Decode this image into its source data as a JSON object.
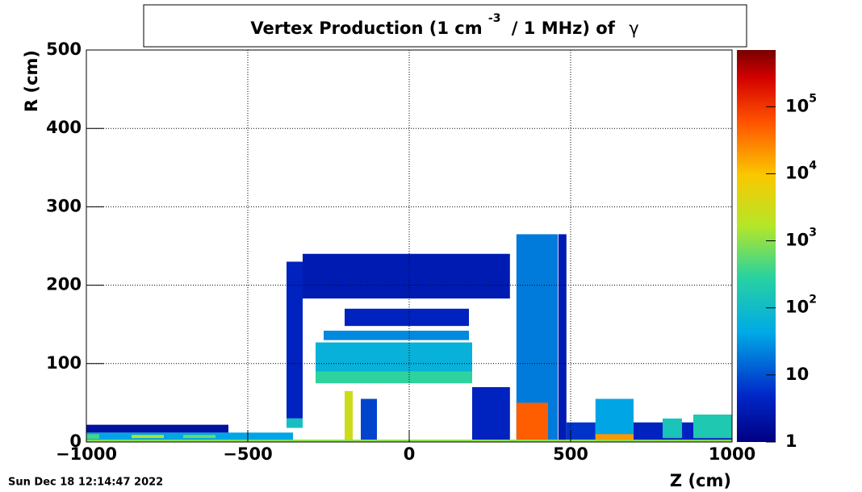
{
  "chart_data": {
    "type": "heatmap",
    "title": "Vertex Production (1 cm",
    "title_superscript": "-3",
    "title_rest": "/ 1 MHz) of",
    "title_particle": "γ",
    "timestamp": "Sun Dec 18 12:14:47 2022",
    "x_label": "Z (cm)",
    "y_label": "R (cm)",
    "xlim": [
      -1000,
      1000
    ],
    "ylim": [
      0,
      500
    ],
    "xticks": [
      {
        "value": -1000,
        "label": "−1000"
      },
      {
        "value": -500,
        "label": "−500"
      },
      0,
      500,
      1000
    ],
    "yticks": [
      0,
      100,
      200,
      300,
      400,
      500
    ],
    "grid": true,
    "zlog": true,
    "zlim": [
      1,
      700000
    ],
    "zticks": [
      1,
      10,
      {
        "value": 100,
        "label": "10",
        "exponent": "2"
      },
      {
        "value": 1000,
        "label": "10",
        "exponent": "3"
      },
      {
        "value": 10000,
        "label": "10",
        "exponent": "4"
      },
      {
        "value": 100000,
        "label": "10",
        "exponent": "5"
      }
    ],
    "cells": [
      {
        "z": [
          -1000,
          -360
        ],
        "r": [
          0,
          12
        ],
        "value": 40
      },
      {
        "z": [
          -1000,
          -960
        ],
        "r": [
          4,
          10
        ],
        "value": 400
      },
      {
        "z": [
          -860,
          -760
        ],
        "r": [
          5,
          9
        ],
        "value": 1500
      },
      {
        "z": [
          -700,
          -600
        ],
        "r": [
          5,
          9
        ],
        "value": 600
      },
      {
        "z": [
          -1000,
          -560
        ],
        "r": [
          12,
          22
        ],
        "value": 2
      },
      {
        "z": [
          -380,
          -330
        ],
        "r": [
          30,
          230
        ],
        "value": 4
      },
      {
        "z": [
          -380,
          -330
        ],
        "r": [
          18,
          30
        ],
        "value": 120
      },
      {
        "z": [
          -330,
          312
        ],
        "r": [
          183,
          240
        ],
        "value": 3
      },
      {
        "z": [
          -200,
          185
        ],
        "r": [
          148,
          170
        ],
        "value": 4
      },
      {
        "z": [
          -265,
          185
        ],
        "r": [
          130,
          142
        ],
        "value": 25
      },
      {
        "z": [
          -290,
          195
        ],
        "r": [
          75,
          127
        ],
        "value": 60
      },
      {
        "z": [
          -290,
          195
        ],
        "r": [
          75,
          90
        ],
        "value": 300
      },
      {
        "z": [
          -200,
          -175
        ],
        "r": [
          3,
          65
        ],
        "value": 3000
      },
      {
        "z": [
          -150,
          -100
        ],
        "r": [
          3,
          55
        ],
        "value": 8
      },
      {
        "z": [
          195,
          312
        ],
        "r": [
          3,
          70
        ],
        "value": 4
      },
      {
        "z": [
          332,
          460
        ],
        "r": [
          3,
          265
        ],
        "value": 20
      },
      {
        "z": [
          332,
          430
        ],
        "r": [
          3,
          50
        ],
        "value": 50000
      },
      {
        "z": [
          462,
          487
        ],
        "r": [
          0,
          265
        ],
        "value": 3
      },
      {
        "z": [
          487,
          577
        ],
        "r": [
          3,
          25
        ],
        "value": 6
      },
      {
        "z": [
          577,
          695
        ],
        "r": [
          0,
          55
        ],
        "value": 40
      },
      {
        "z": [
          577,
          695
        ],
        "r": [
          0,
          10
        ],
        "value": 20000
      },
      {
        "z": [
          695,
          1000
        ],
        "r": [
          0,
          25
        ],
        "value": 4
      },
      {
        "z": [
          785,
          845
        ],
        "r": [
          5,
          30
        ],
        "value": 150
      },
      {
        "z": [
          880,
          1000
        ],
        "r": [
          5,
          35
        ],
        "value": 180
      },
      {
        "z": [
          -1000,
          1000
        ],
        "r": [
          0,
          3
        ],
        "value": 1000
      }
    ]
  }
}
